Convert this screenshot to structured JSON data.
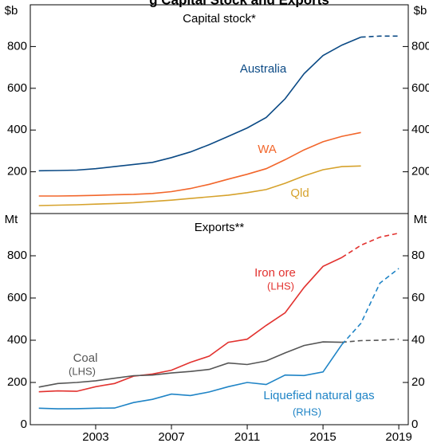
{
  "title": "g Capital Stock and Exports",
  "chart_data": [
    {
      "type": "line",
      "title": "Capital stock*",
      "y_label": "$b",
      "y2_label": "$b",
      "x": [
        2000,
        2001,
        2002,
        2003,
        2004,
        2005,
        2006,
        2007,
        2008,
        2009,
        2010,
        2011,
        2012,
        2013,
        2014,
        2015,
        2016,
        2017,
        2018,
        2019
      ],
      "xlim": [
        1999.55,
        2019.5
      ],
      "ylim": [
        0,
        1000
      ],
      "yticks": [
        200,
        400,
        600,
        800
      ],
      "y2lim": [
        0,
        1000
      ],
      "y2ticks": [
        200,
        400,
        600,
        800
      ],
      "series": [
        {
          "name": "Australia",
          "color": "#0b4a85",
          "values": [
            205,
            206,
            208,
            215,
            225,
            235,
            245,
            268,
            295,
            330,
            370,
            410,
            460,
            550,
            670,
            757,
            807,
            845,
            null,
            null
          ],
          "forecast": [
            null,
            null,
            null,
            null,
            null,
            null,
            null,
            null,
            null,
            null,
            null,
            null,
            null,
            null,
            null,
            null,
            null,
            845,
            850,
            850
          ]
        },
        {
          "name": "WA",
          "color": "#f2662b",
          "values": [
            84,
            84,
            85,
            87,
            90,
            92,
            96,
            105,
            120,
            140,
            165,
            188,
            215,
            258,
            305,
            344,
            370,
            388,
            null,
            null
          ]
        },
        {
          "name": "Qld",
          "color": "#d6a22c",
          "values": [
            38,
            40,
            42,
            45,
            48,
            52,
            58,
            64,
            72,
            80,
            88,
            100,
            115,
            145,
            180,
            210,
            225,
            228,
            null,
            null
          ]
        }
      ]
    },
    {
      "type": "line",
      "title": "Exports**",
      "y_label": "Mt",
      "y2_label": "Mt",
      "x": [
        2000,
        2001,
        2002,
        2003,
        2004,
        2005,
        2006,
        2007,
        2008,
        2009,
        2010,
        2011,
        2012,
        2013,
        2014,
        2015,
        2016,
        2017,
        2018,
        2019
      ],
      "xlim": [
        1999.55,
        2019.5
      ],
      "xticks": [
        2003,
        2007,
        2011,
        2015,
        2019
      ],
      "ylim": [
        0,
        1000
      ],
      "yticks": [
        0,
        200,
        400,
        600,
        800
      ],
      "y2lim": [
        0,
        100
      ],
      "y2ticks": [
        0,
        20,
        40,
        60,
        80
      ],
      "series": [
        {
          "name": "Iron ore",
          "axis_note": "(LHS)",
          "color": "#e2322f",
          "values": [
            156,
            160,
            158,
            180,
            195,
            230,
            240,
            258,
            295,
            325,
            390,
            405,
            470,
            530,
            650,
            750,
            792,
            null,
            null,
            null
          ],
          "forecast": [
            null,
            null,
            null,
            null,
            null,
            null,
            null,
            null,
            null,
            null,
            null,
            null,
            null,
            null,
            null,
            null,
            792,
            850,
            888,
            907
          ]
        },
        {
          "name": "Coal",
          "axis_note": "(LHS)",
          "color": "#555555",
          "values": [
            178,
            195,
            200,
            208,
            220,
            232,
            235,
            245,
            252,
            262,
            292,
            285,
            302,
            340,
            375,
            392,
            390,
            null,
            null,
            null
          ],
          "forecast": [
            null,
            null,
            null,
            null,
            null,
            null,
            null,
            null,
            null,
            null,
            null,
            null,
            null,
            null,
            null,
            null,
            390,
            398,
            400,
            405
          ]
        },
        {
          "name": "Liquefied natural gas",
          "axis_note": "(RHS)",
          "axis": "y2",
          "color": "#1f84c6",
          "values": [
            7.8,
            7.5,
            7.6,
            7.8,
            7.9,
            10.5,
            12,
            14.5,
            13.8,
            15.5,
            18,
            20,
            19,
            23.5,
            23.3,
            25,
            38,
            null,
            null,
            null
          ],
          "forecast": [
            null,
            null,
            null,
            null,
            null,
            null,
            null,
            null,
            null,
            null,
            null,
            null,
            null,
            null,
            null,
            null,
            38,
            48,
            67,
            74
          ]
        }
      ]
    }
  ]
}
